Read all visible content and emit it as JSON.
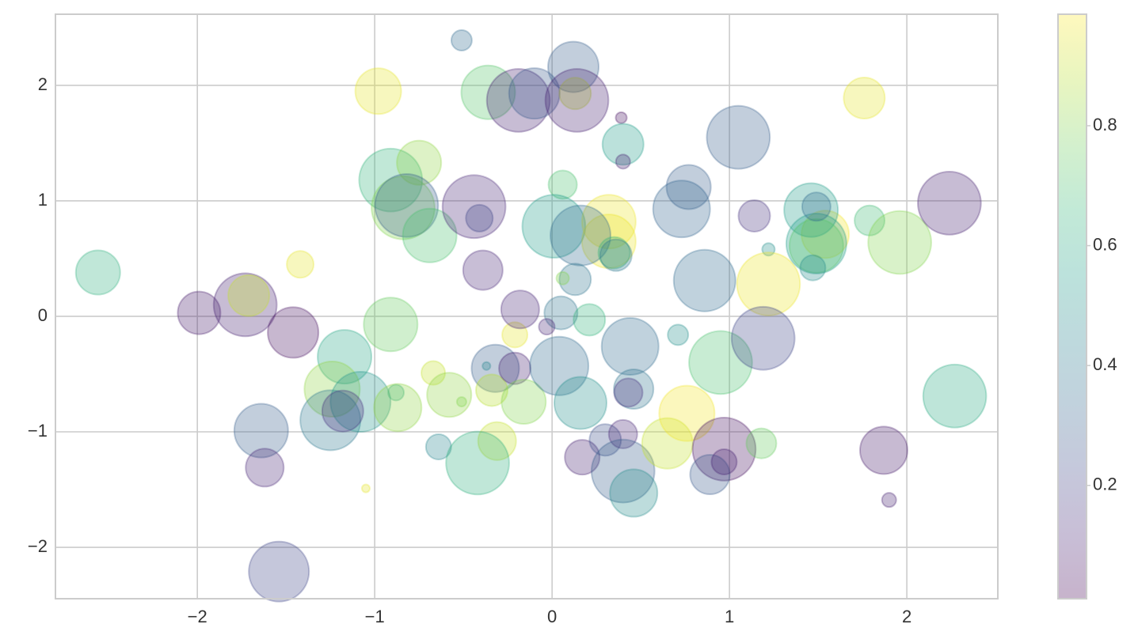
{
  "chart_data": {
    "type": "scatter",
    "x": [
      -2.56,
      -1.99,
      -1.73,
      -1.71,
      -1.46,
      -1.42,
      -1.17,
      -1.24,
      -1.25,
      -1.08,
      -1.18,
      -0.88,
      -0.87,
      -1.64,
      -1.62,
      -1.54,
      -1.05,
      -0.98,
      -0.91,
      -0.75,
      -0.84,
      -0.82,
      -0.69,
      -0.91,
      -0.67,
      -0.58,
      -0.51,
      -0.64,
      -0.51,
      -0.36,
      -0.44,
      -0.41,
      -0.39,
      -0.32,
      -0.37,
      -0.34,
      -0.21,
      -0.16,
      -0.31,
      -0.42,
      -0.21,
      -0.18,
      -0.19,
      -0.1,
      0.12,
      0.13,
      0.14,
      0.39,
      0.4,
      0.4,
      0.06,
      0.01,
      0.32,
      0.32,
      0.16,
      0.35,
      0.36,
      0.13,
      0.06,
      0.05,
      -0.03,
      0.21,
      0.04,
      0.16,
      0.17,
      0.3,
      0.4,
      0.4,
      0.46,
      0.44,
      0.46,
      0.43,
      0.71,
      0.65,
      0.76,
      0.95,
      0.97,
      0.89,
      0.97,
      1.18,
      0.77,
      0.73,
      0.86,
      1.05,
      1.14,
      1.22,
      1.22,
      1.19,
      1.54,
      1.46,
      1.49,
      1.49,
      1.49,
      1.47,
      1.79,
      1.76,
      1.96,
      2.24,
      2.27,
      1.87,
      1.9
    ],
    "values": [
      0.38,
      0.03,
      0.1,
      0.18,
      -0.14,
      0.45,
      -0.35,
      -0.63,
      -0.9,
      -0.74,
      -0.82,
      -0.66,
      -0.79,
      -0.99,
      -1.31,
      -2.21,
      -1.49,
      1.95,
      1.18,
      1.33,
      0.94,
      0.96,
      0.7,
      -0.07,
      -0.49,
      -0.68,
      -0.74,
      -1.13,
      2.39,
      1.94,
      0.95,
      0.85,
      0.4,
      -0.45,
      -0.43,
      -0.64,
      -0.45,
      -0.74,
      -1.08,
      -1.27,
      -0.16,
      0.06,
      1.87,
      1.93,
      2.16,
      1.93,
      1.87,
      1.72,
      1.49,
      1.34,
      1.14,
      0.78,
      0.82,
      0.65,
      0.7,
      0.55,
      0.53,
      0.32,
      0.33,
      0.03,
      -0.09,
      -0.03,
      -0.43,
      -0.75,
      -1.22,
      -1.07,
      -1.02,
      -1.34,
      -1.53,
      -0.26,
      -0.63,
      -0.66,
      -0.16,
      -1.1,
      -0.84,
      -0.4,
      -1.15,
      -1.37,
      -1.26,
      -1.1,
      1.12,
      0.93,
      0.31,
      1.55,
      0.87,
      0.58,
      0.28,
      -0.19,
      0.71,
      0.92,
      0.63,
      0.61,
      0.95,
      0.42,
      0.83,
      1.89,
      0.64,
      0.98,
      -0.69,
      -1.16,
      -1.59
    ],
    "sizes": [
      494,
      459,
      1000,
      425,
      645,
      182,
      728,
      772,
      909,
      909,
      425,
      63,
      567,
      728,
      363,
      909,
      16,
      530,
      1000,
      494,
      1000,
      1000,
      728,
      728,
      142,
      494,
      23,
      161,
      106,
      728,
      1000,
      182,
      394,
      567,
      16,
      252,
      252,
      494,
      363,
      1000,
      161,
      363,
      1000,
      645,
      645,
      252,
      1000,
      31,
      425,
      51,
      204,
      1000,
      728,
      728,
      909,
      252,
      252,
      252,
      40,
      278,
      63,
      252,
      862,
      686,
      305,
      252,
      204,
      1000,
      567,
      816,
      394,
      204,
      106,
      645,
      772,
      1000,
      1000,
      394,
      161,
      227,
      494,
      816,
      958,
      1000,
      252,
      40,
      1000,
      1000,
      567,
      728,
      909,
      728,
      204,
      161,
      227,
      425,
      1000,
      1000,
      1000,
      567,
      51
    ],
    "colors": [
      0.62,
      0.08,
      0.1,
      0.9,
      0.05,
      0.95,
      0.58,
      0.82,
      0.4,
      0.52,
      0.15,
      0.6,
      0.82,
      0.3,
      0.12,
      0.22,
      0.95,
      0.95,
      0.65,
      0.82,
      0.8,
      0.3,
      0.7,
      0.75,
      0.9,
      0.82,
      0.8,
      0.45,
      0.35,
      0.72,
      0.12,
      0.22,
      0.12,
      0.3,
      0.45,
      0.88,
      0.1,
      0.8,
      0.9,
      0.62,
      0.95,
      0.12,
      0.1,
      0.28,
      0.3,
      0.9,
      0.1,
      0.05,
      0.55,
      0.1,
      0.7,
      0.55,
      0.96,
      0.96,
      0.35,
      0.65,
      0.4,
      0.38,
      0.8,
      0.38,
      0.12,
      0.65,
      0.35,
      0.5,
      0.1,
      0.25,
      0.12,
      0.3,
      0.48,
      0.35,
      0.38,
      0.15,
      0.5,
      0.9,
      0.97,
      0.7,
      0.05,
      0.28,
      0.1,
      0.75,
      0.3,
      0.32,
      0.35,
      0.3,
      0.15,
      0.5,
      0.96,
      0.22,
      0.97,
      0.55,
      0.55,
      0.72,
      0.35,
      0.48,
      0.68,
      0.95,
      0.8,
      0.1,
      0.6,
      0.08,
      0.1
    ],
    "colormap": [
      "#440154",
      "#482878",
      "#3e4989",
      "#31688e",
      "#26828e",
      "#1f9e89",
      "#35b779",
      "#6ece58",
      "#b5de2b",
      "#fde725"
    ],
    "alpha": 0.3,
    "xlim": [
      -2.8,
      2.513
    ],
    "ylim": [
      -2.445,
      2.616
    ],
    "xticks": [
      {
        "value": -2,
        "label": "−2"
      },
      {
        "value": -1,
        "label": "−1"
      },
      0,
      1,
      2
    ],
    "yticks": [
      {
        "value": -2,
        "label": "−2"
      },
      {
        "value": -1,
        "label": "−1"
      },
      0,
      1,
      2
    ],
    "clim": [
      0.011,
      0.986
    ],
    "cticks": [
      0.2,
      0.4,
      0.6,
      0.8
    ],
    "grid": true
  }
}
